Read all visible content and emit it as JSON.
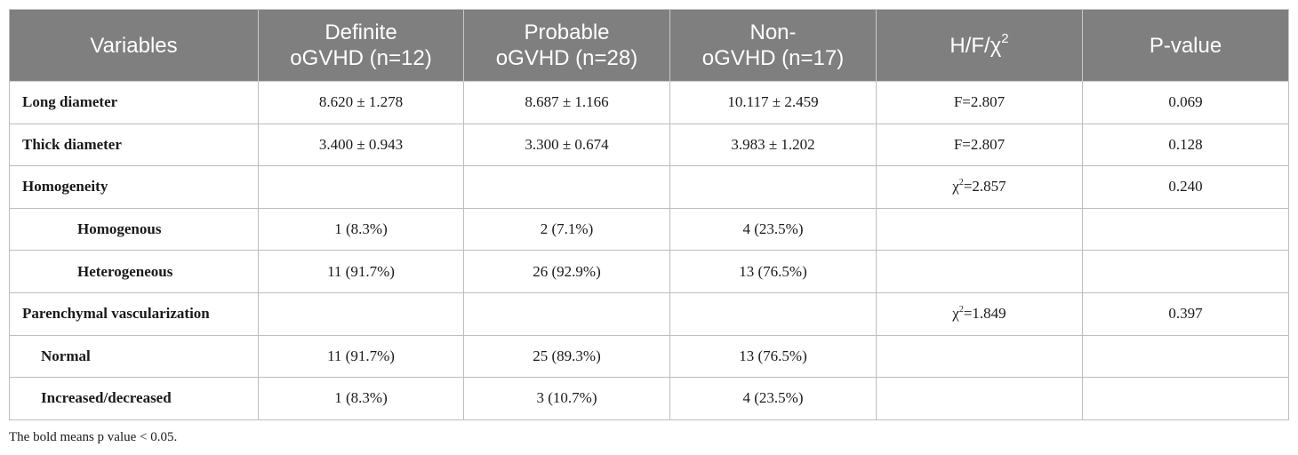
{
  "table": {
    "headers": [
      {
        "lines": [
          "Variables"
        ]
      },
      {
        "lines": [
          "Definite",
          "oGVHD (n=12)"
        ]
      },
      {
        "lines": [
          "Probable",
          "oGVHD (n=28)"
        ]
      },
      {
        "lines": [
          "Non-",
          "oGVHD (n=17)"
        ]
      },
      {
        "lines": [
          "H/F/χ"
        ],
        "sup": "2"
      },
      {
        "lines": [
          "P-value"
        ]
      }
    ],
    "rows": [
      {
        "label": "Long diameter",
        "indent": 0,
        "definite": "8.620 ± 1.278",
        "probable": "8.687 ± 1.166",
        "non": "10.117 ± 2.459",
        "stat": "F=2.807",
        "p": "0.069"
      },
      {
        "label": "Thick diameter",
        "indent": 0,
        "definite": "3.400 ± 0.943",
        "probable": "3.300 ± 0.674",
        "non": "3.983 ± 1.202",
        "stat": "F=2.807",
        "p": "0.128"
      },
      {
        "label": "Homogeneity",
        "indent": 0,
        "definite": "",
        "probable": "",
        "non": "",
        "stat_prefix": "χ",
        "stat_sup": "2",
        "stat_suffix": "=2.857",
        "p": "0.240"
      },
      {
        "label": "Homogenous",
        "indent": 2,
        "definite": "1 (8.3%)",
        "probable": "2 (7.1%)",
        "non": "4 (23.5%)",
        "stat": "",
        "p": ""
      },
      {
        "label": "Heterogeneous",
        "indent": 2,
        "definite": "11 (91.7%)",
        "probable": "26 (92.9%)",
        "non": "13 (76.5%)",
        "stat": "",
        "p": ""
      },
      {
        "label": "Parenchymal vascularization",
        "indent": 0,
        "definite": "",
        "probable": "",
        "non": "",
        "stat_prefix": "χ",
        "stat_sup": "2",
        "stat_suffix": "=1.849",
        "p": "0.397"
      },
      {
        "label": "Normal",
        "indent": 1,
        "definite": "11 (91.7%)",
        "probable": "25 (89.3%)",
        "non": "13 (76.5%)",
        "stat": "",
        "p": ""
      },
      {
        "label": "Increased/decreased",
        "indent": 1,
        "definite": "1 (8.3%)",
        "probable": "3 (10.7%)",
        "non": "4 (23.5%)",
        "stat": "",
        "p": ""
      }
    ]
  },
  "footnote": "The bold means p value < 0.05.",
  "colors": {
    "header_bg": "#7f7f7f",
    "header_text": "#ffffff",
    "border": "#bdbdbd"
  }
}
